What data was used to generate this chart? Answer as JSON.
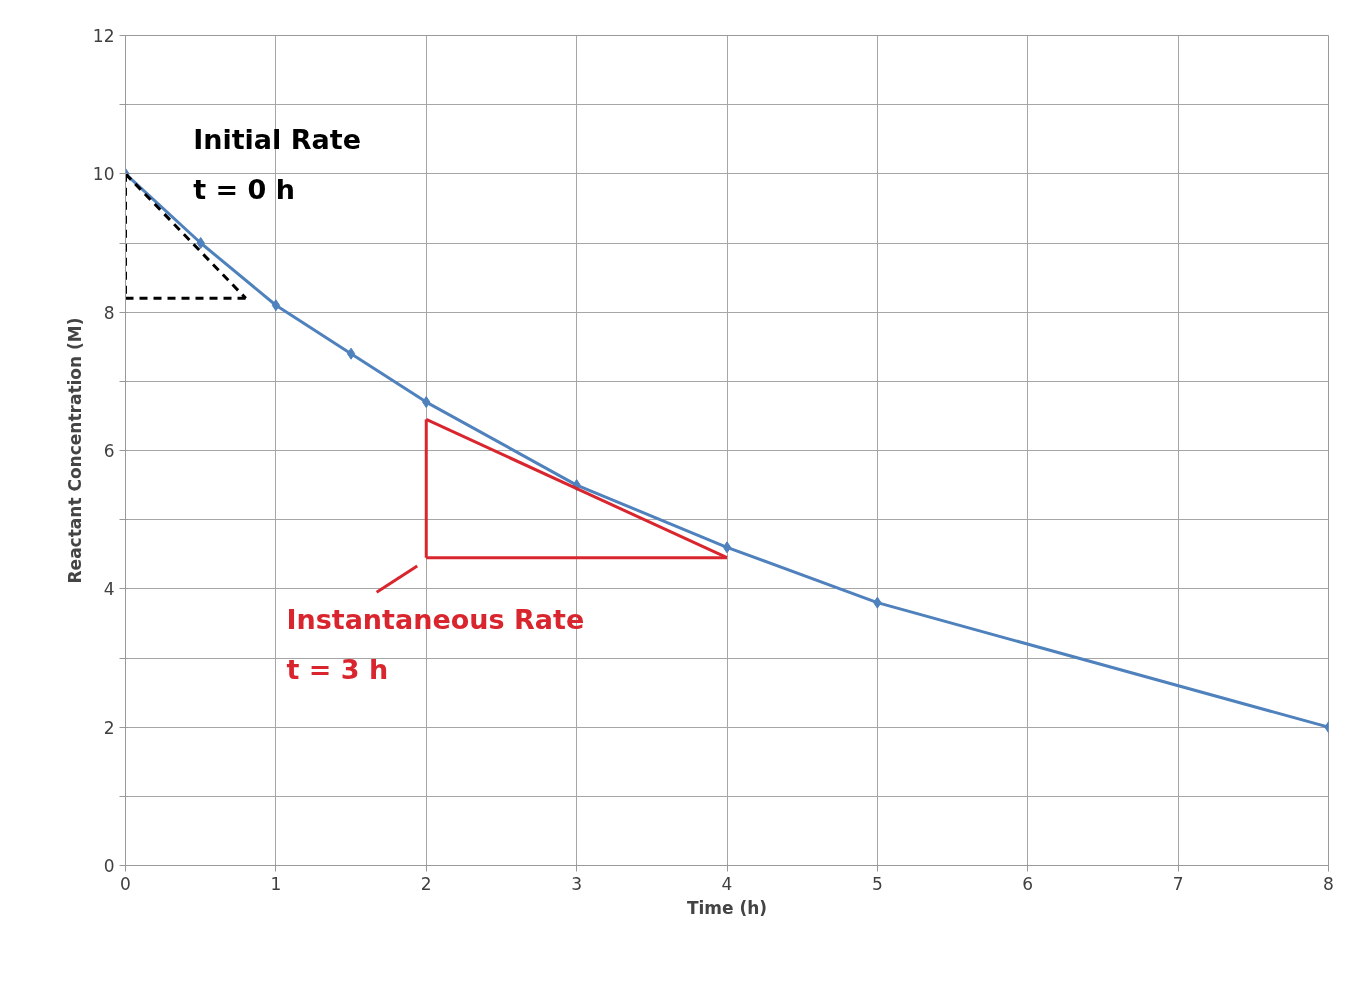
{
  "chart_data": {
    "type": "line",
    "xlabel": "Time (h)",
    "ylabel": "Reactant Concentration (M)",
    "xlim": [
      0,
      8
    ],
    "ylim": [
      0,
      12
    ],
    "xticks": [
      0,
      1,
      2,
      3,
      4,
      5,
      6,
      7,
      8
    ],
    "yticks": [
      0,
      {
        "value": 1,
        "label": null
      },
      2,
      {
        "value": 3,
        "label": null
      },
      4,
      {
        "value": 5,
        "label": null
      },
      6,
      {
        "value": 7,
        "label": null
      },
      8,
      {
        "value": 9,
        "label": null
      },
      10,
      {
        "value": 11,
        "label": null
      },
      12
    ],
    "grid": true,
    "marker": "diamond",
    "line_style": "solid",
    "series": [
      {
        "color": "#4f81bd",
        "x": [
          0,
          0.5,
          1,
          1.5,
          2,
          3,
          4,
          5,
          8
        ],
        "values": [
          10,
          9,
          8.1,
          7.4,
          6.7,
          5.5,
          4.6,
          3.8,
          2.0
        ]
      },
      {
        "color": "#000000",
        "marker": "none",
        "line_style": "dashed",
        "x": [
          0,
          0.8
        ],
        "values": [
          10,
          8.2
        ]
      },
      {
        "color": "#000000",
        "marker": "none",
        "line_style": "dashed",
        "x": [
          0,
          0
        ],
        "values": [
          10,
          8.2
        ]
      },
      {
        "color": "#000000",
        "marker": "none",
        "line_style": "dashed",
        "x": [
          0,
          0.8
        ],
        "values": [
          8.2,
          8.2
        ]
      },
      {
        "color": "#d9262e",
        "marker": "none",
        "line_style": "solid",
        "x": [
          2,
          4
        ],
        "values": [
          6.45,
          4.45
        ]
      },
      {
        "color": "#d9262e",
        "marker": "none",
        "line_style": "solid",
        "x": [
          2,
          2
        ],
        "values": [
          6.45,
          4.45
        ]
      },
      {
        "color": "#d9262e",
        "marker": "none",
        "line_style": "solid",
        "x": [
          2,
          4
        ],
        "values": [
          4.45,
          4.45
        ]
      }
    ],
    "annotations": [
      "Initial Rate\nt = 0 h",
      {
        "text": "Instantaneous Rate\nt = 3 h",
        "x": 2,
        "y": 4.45
      }
    ]
  }
}
